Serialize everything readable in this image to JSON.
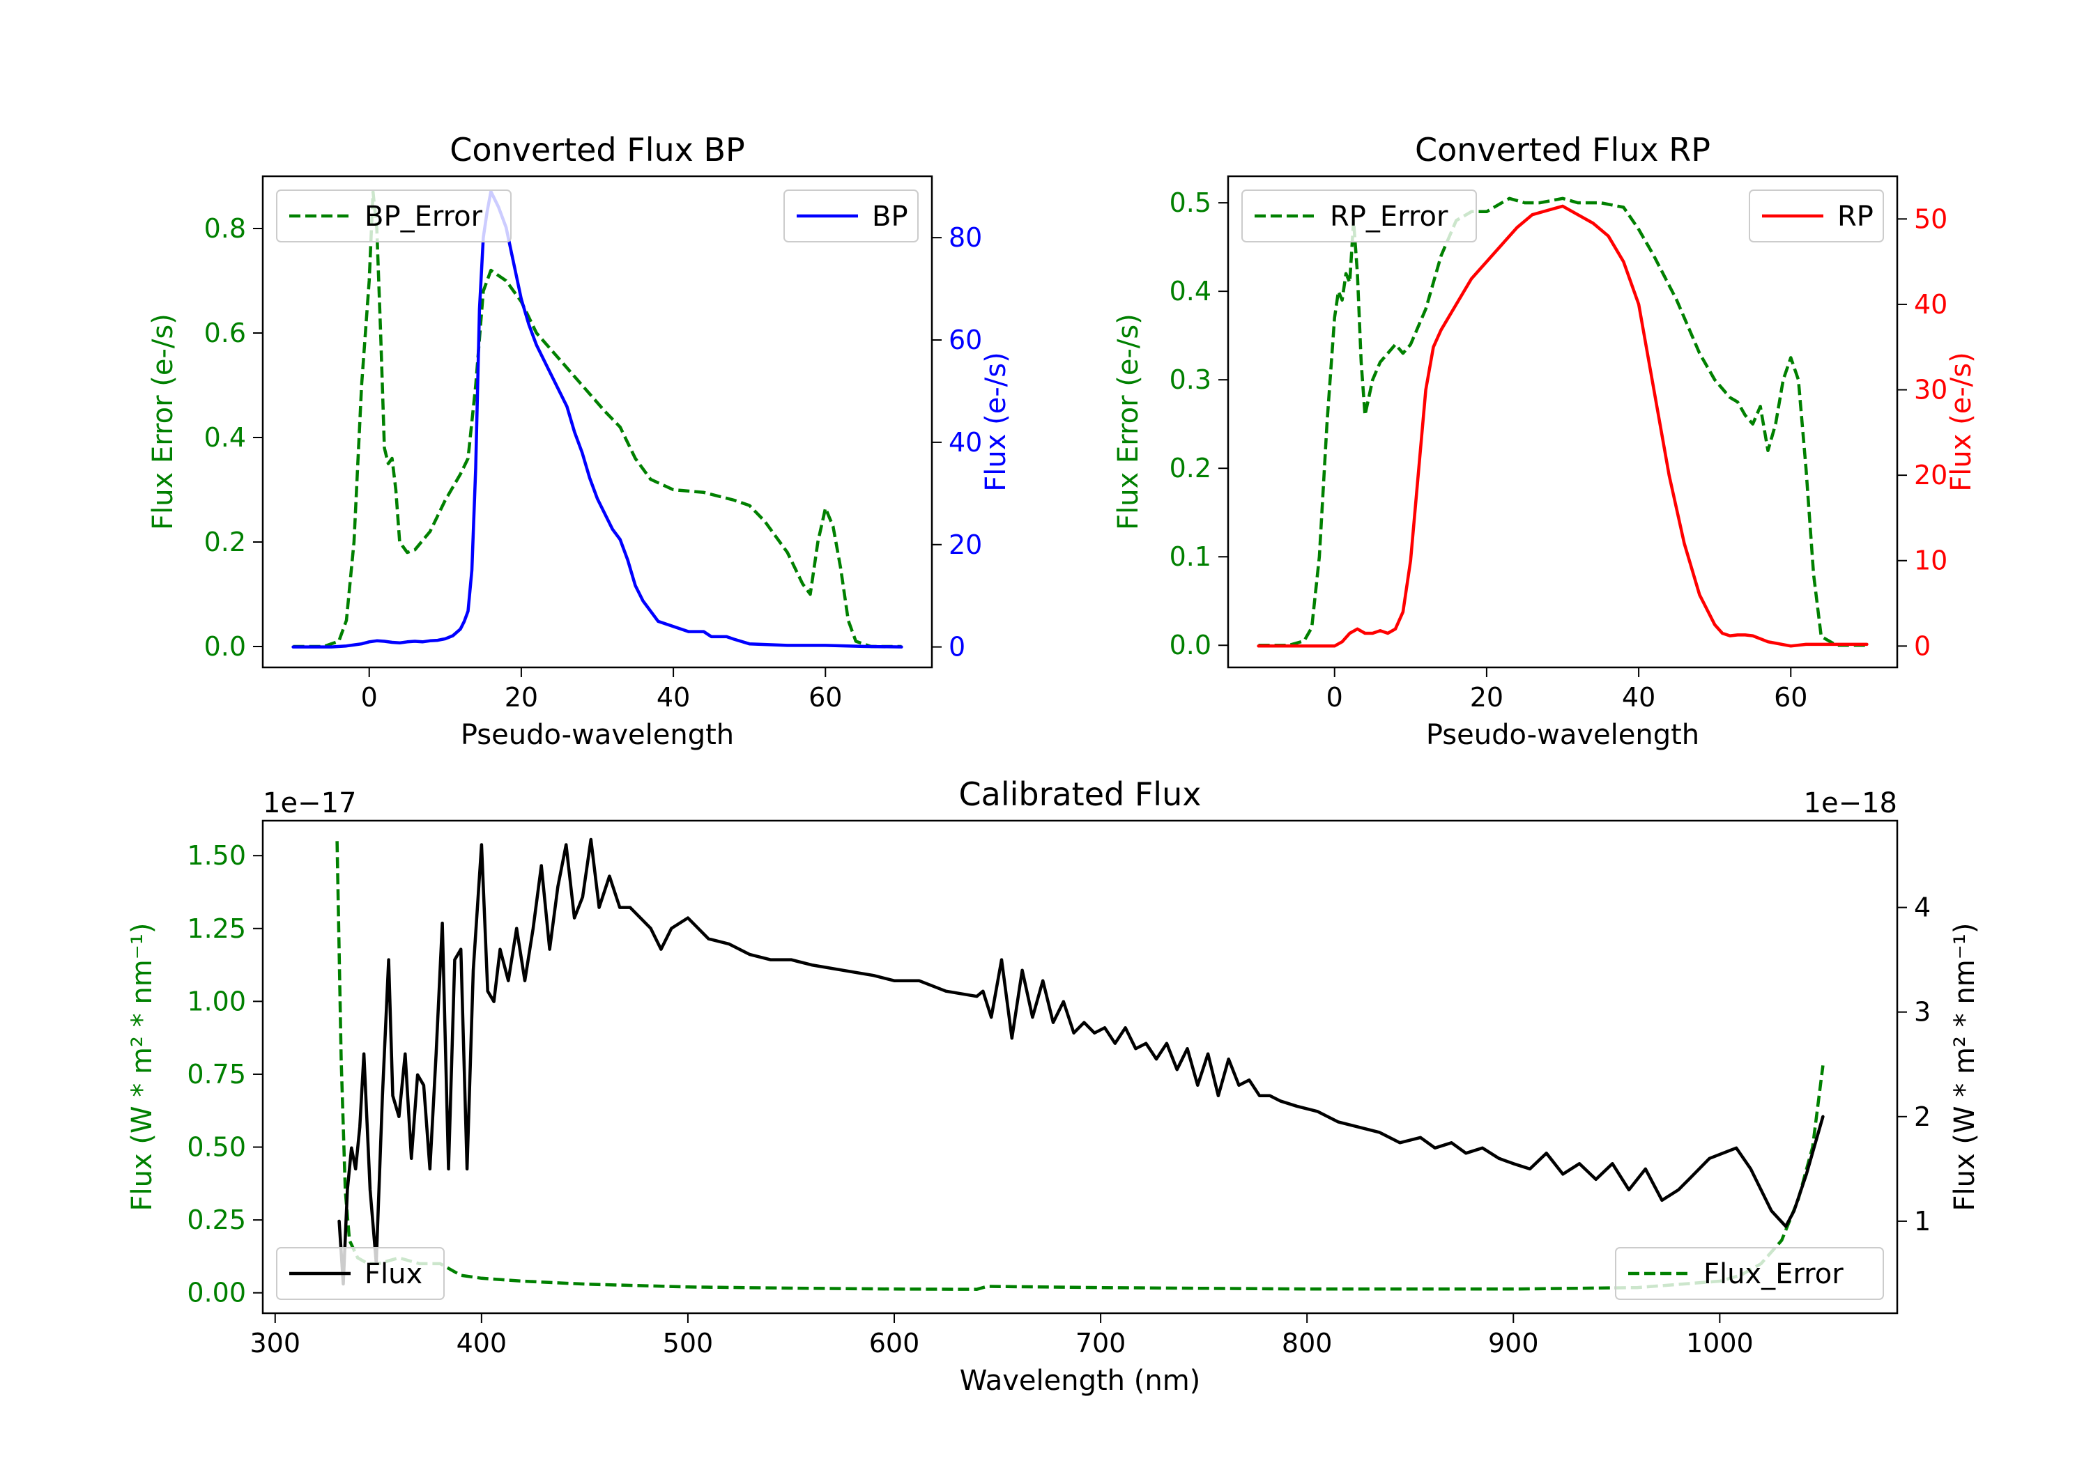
{
  "colors": {
    "green": "#008000",
    "blue": "#0000ff",
    "red": "#ff0000",
    "black": "#000000"
  },
  "chart_data": [
    {
      "id": "bp",
      "type": "line",
      "title": "Converted Flux BP",
      "xlabel": "Pseudo-wavelength",
      "ylabel_left": "Flux Error (e-/s)",
      "ylabel_right": "Flux (e-/s)",
      "xlim": [
        -14,
        74
      ],
      "ylim_left": [
        -0.04,
        0.9
      ],
      "ylim_right": [
        -4,
        92
      ],
      "xticks": [
        0,
        20,
        40,
        60
      ],
      "yticks_left": [
        0.0,
        0.2,
        0.4,
        0.6,
        0.8
      ],
      "yticks_left_labels": [
        "0.0",
        "0.2",
        "0.4",
        "0.6",
        "0.8"
      ],
      "yticks_right": [
        0,
        20,
        40,
        60,
        80
      ],
      "yticks_right_labels": [
        "0",
        "20",
        "40",
        "60",
        "80"
      ],
      "legend_left": {
        "label": "BP_Error",
        "placement": "upper-left"
      },
      "legend_right": {
        "label": "BP",
        "placement": "upper-right"
      },
      "series": [
        {
          "name": "BP_Error",
          "axis": "left",
          "color": "green",
          "dash": true,
          "x": [
            -10,
            -6,
            -4,
            -3,
            -2,
            -1,
            0,
            0.5,
            1,
            1.5,
            2,
            2.5,
            3,
            3.5,
            4,
            5,
            6,
            8,
            10,
            12,
            13,
            14,
            15,
            16,
            18,
            20,
            22,
            25,
            28,
            31,
            33,
            35,
            37,
            40,
            44,
            48,
            50,
            52,
            55,
            57,
            58,
            59,
            60,
            61,
            62,
            63,
            64,
            66,
            70
          ],
          "y": [
            0.0,
            0.0,
            0.01,
            0.05,
            0.2,
            0.5,
            0.7,
            0.87,
            0.8,
            0.6,
            0.38,
            0.35,
            0.36,
            0.3,
            0.2,
            0.18,
            0.185,
            0.22,
            0.28,
            0.33,
            0.36,
            0.5,
            0.68,
            0.72,
            0.7,
            0.66,
            0.6,
            0.55,
            0.5,
            0.45,
            0.42,
            0.36,
            0.32,
            0.3,
            0.295,
            0.28,
            0.27,
            0.24,
            0.18,
            0.12,
            0.1,
            0.2,
            0.265,
            0.23,
            0.15,
            0.05,
            0.01,
            0.0,
            0.0
          ]
        },
        {
          "name": "BP",
          "axis": "right",
          "color": "blue",
          "dash": false,
          "x": [
            -10,
            -5,
            -3,
            -1,
            0,
            1,
            2,
            3,
            4,
            5,
            6,
            7,
            8,
            9,
            10,
            11,
            12,
            12.5,
            13,
            13.5,
            14,
            14.5,
            15,
            15.5,
            16,
            17,
            18,
            19,
            20,
            21,
            22,
            24,
            26,
            27,
            28,
            29,
            30,
            31,
            32,
            33,
            34,
            35,
            36,
            37,
            38,
            40,
            42,
            44,
            45,
            46,
            47,
            48,
            50,
            55,
            60,
            65,
            70
          ],
          "y": [
            0,
            0,
            0.2,
            0.6,
            1,
            1.2,
            1.1,
            0.9,
            0.8,
            1,
            1.1,
            1,
            1.2,
            1.3,
            1.6,
            2.2,
            3.5,
            5,
            7,
            15,
            35,
            66,
            80,
            85,
            89,
            86,
            82,
            75,
            68,
            63,
            59,
            53,
            47,
            42,
            38,
            33,
            29,
            26,
            23,
            21,
            17,
            12,
            9,
            7,
            5,
            4,
            3,
            3,
            2,
            2,
            2,
            1.5,
            0.6,
            0.3,
            0.3,
            0.1,
            0
          ]
        }
      ]
    },
    {
      "id": "rp",
      "type": "line",
      "title": "Converted Flux RP",
      "xlabel": "Pseudo-wavelength",
      "ylabel_left": "Flux Error (e-/s)",
      "ylabel_right": "Flux (e-/s)",
      "xlim": [
        -14,
        74
      ],
      "ylim_left": [
        -0.025,
        0.53
      ],
      "ylim_right": [
        -2.5,
        55
      ],
      "xticks": [
        0,
        20,
        40,
        60
      ],
      "yticks_left": [
        0.0,
        0.1,
        0.2,
        0.3,
        0.4,
        0.5
      ],
      "yticks_left_labels": [
        "0.0",
        "0.1",
        "0.2",
        "0.3",
        "0.4",
        "0.5"
      ],
      "yticks_right": [
        0,
        10,
        20,
        30,
        40,
        50
      ],
      "yticks_right_labels": [
        "0",
        "10",
        "20",
        "30",
        "40",
        "50"
      ],
      "legend_left": {
        "label": "RP_Error",
        "placement": "upper-left"
      },
      "legend_right": {
        "label": "RP",
        "placement": "upper-right"
      },
      "series": [
        {
          "name": "RP_Error",
          "axis": "left",
          "color": "green",
          "dash": true,
          "x": [
            -10,
            -6,
            -4,
            -3,
            -2,
            -1,
            0,
            0.5,
            1,
            1.5,
            2,
            2.5,
            3,
            3.5,
            4,
            5,
            6,
            7,
            8,
            9,
            10,
            11,
            12,
            14,
            16,
            18,
            20,
            22,
            23,
            25,
            27,
            30,
            32,
            35,
            38,
            40,
            42,
            45,
            48,
            50,
            52,
            53,
            54,
            55,
            56,
            57,
            58,
            59,
            60,
            61,
            62,
            63,
            64,
            66,
            70
          ],
          "y": [
            0.0,
            0.0,
            0.005,
            0.02,
            0.1,
            0.25,
            0.37,
            0.4,
            0.39,
            0.42,
            0.41,
            0.48,
            0.42,
            0.32,
            0.26,
            0.3,
            0.32,
            0.33,
            0.34,
            0.33,
            0.34,
            0.36,
            0.38,
            0.44,
            0.48,
            0.49,
            0.49,
            0.5,
            0.505,
            0.5,
            0.5,
            0.505,
            0.5,
            0.5,
            0.495,
            0.47,
            0.44,
            0.39,
            0.33,
            0.3,
            0.28,
            0.275,
            0.26,
            0.25,
            0.27,
            0.22,
            0.25,
            0.3,
            0.325,
            0.3,
            0.2,
            0.08,
            0.01,
            0.0,
            0.0
          ]
        },
        {
          "name": "RP",
          "axis": "right",
          "color": "red",
          "dash": false,
          "x": [
            -10,
            -5,
            -3,
            -1,
            0,
            1,
            2,
            3,
            4,
            5,
            6,
            7,
            8,
            9,
            10,
            11,
            12,
            13,
            14,
            16,
            18,
            20,
            22,
            24,
            26,
            28,
            30,
            32,
            34,
            36,
            38,
            40,
            42,
            44,
            46,
            48,
            50,
            51,
            52,
            53,
            54,
            55,
            57,
            60,
            62,
            65,
            70
          ],
          "y": [
            0,
            0,
            0,
            0,
            0,
            0.5,
            1.5,
            2,
            1.5,
            1.5,
            1.8,
            1.5,
            2,
            4,
            10,
            20,
            30,
            35,
            37,
            40,
            43,
            45,
            47,
            49,
            50.5,
            51,
            51.5,
            50.5,
            49.5,
            48,
            45,
            40,
            30,
            20,
            12,
            6,
            2.5,
            1.5,
            1.2,
            1.3,
            1.3,
            1.2,
            0.5,
            0,
            0.2,
            0.2,
            0.2
          ]
        }
      ]
    },
    {
      "id": "cal",
      "type": "line",
      "title": "Calibrated Flux",
      "xlabel": "Wavelength (nm)",
      "ylabel_left": "Flux (W * m² * nm⁻¹)",
      "ylabel_right": "Flux (W * m² * nm⁻¹)",
      "multiplier_left": "1e−17",
      "multiplier_right": "1e−18",
      "xlim": [
        294,
        1086
      ],
      "ylim_left": [
        -0.07,
        1.62
      ],
      "ylim_right": [
        0.12,
        4.83
      ],
      "xticks": [
        300,
        400,
        500,
        600,
        700,
        800,
        900,
        1000
      ],
      "yticks_left": [
        0.0,
        0.25,
        0.5,
        0.75,
        1.0,
        1.25,
        1.5
      ],
      "yticks_left_labels": [
        "0.00",
        "0.25",
        "0.50",
        "0.75",
        "1.00",
        "1.25",
        "1.50"
      ],
      "yticks_right": [
        1,
        2,
        3,
        4
      ],
      "yticks_right_labels": [
        "1",
        "2",
        "3",
        "4"
      ],
      "legend_left": {
        "label": "Flux",
        "placement": "lower-left"
      },
      "legend_right": {
        "label": "Flux_Error",
        "placement": "lower-right"
      },
      "series": [
        {
          "name": "Flux_Error",
          "axis": "left",
          "color": "green",
          "dash": true,
          "x": [
            330,
            332,
            334,
            336,
            340,
            345,
            350,
            355,
            360,
            370,
            380,
            390,
            400,
            420,
            450,
            500,
            550,
            600,
            640,
            645,
            700,
            800,
            900,
            960,
            1000,
            1010,
            1020,
            1030,
            1038,
            1045,
            1050
          ],
          "y": [
            1.55,
            0.8,
            0.35,
            0.18,
            0.12,
            0.1,
            0.1,
            0.11,
            0.12,
            0.1,
            0.1,
            0.06,
            0.05,
            0.04,
            0.03,
            0.02,
            0.016,
            0.013,
            0.012,
            0.022,
            0.018,
            0.013,
            0.013,
            0.018,
            0.04,
            0.06,
            0.1,
            0.18,
            0.32,
            0.5,
            0.78
          ]
        },
        {
          "name": "Flux",
          "axis": "right",
          "color": "black",
          "dash": false,
          "x": [
            331,
            333,
            335,
            337,
            339,
            341,
            343,
            346,
            349,
            352,
            355,
            357,
            360,
            363,
            366,
            369,
            372,
            375,
            378,
            381,
            384,
            387,
            390,
            393,
            396,
            400,
            403,
            406,
            409,
            413,
            417,
            421,
            425,
            429,
            433,
            437,
            441,
            445,
            449,
            453,
            457,
            462,
            467,
            472,
            477,
            482,
            487,
            492,
            500,
            510,
            520,
            530,
            540,
            550,
            560,
            575,
            590,
            600,
            612,
            625,
            640,
            643,
            647,
            652,
            657,
            662,
            667,
            672,
            677,
            682,
            687,
            692,
            697,
            702,
            707,
            712,
            717,
            722,
            727,
            732,
            737,
            742,
            747,
            752,
            757,
            762,
            767,
            772,
            777,
            782,
            787,
            795,
            805,
            815,
            825,
            835,
            845,
            855,
            862,
            870,
            877,
            885,
            893,
            900,
            908,
            916,
            924,
            932,
            940,
            948,
            956,
            964,
            972,
            980,
            985,
            995,
            1008,
            1015,
            1025,
            1032,
            1036,
            1042,
            1050
          ],
          "y": [
            1.0,
            0.4,
            1.3,
            1.7,
            1.5,
            1.9,
            2.6,
            1.3,
            0.6,
            2.2,
            3.5,
            2.2,
            2.0,
            2.6,
            1.6,
            2.4,
            2.3,
            1.5,
            2.6,
            3.85,
            1.5,
            3.5,
            3.6,
            1.5,
            3.4,
            4.6,
            3.2,
            3.1,
            3.6,
            3.3,
            3.8,
            3.3,
            3.8,
            4.4,
            3.6,
            4.2,
            4.6,
            3.9,
            4.1,
            4.65,
            4.0,
            4.3,
            4.0,
            4.0,
            3.9,
            3.8,
            3.6,
            3.8,
            3.9,
            3.7,
            3.65,
            3.55,
            3.5,
            3.5,
            3.45,
            3.4,
            3.35,
            3.3,
            3.3,
            3.2,
            3.15,
            3.2,
            2.95,
            3.5,
            2.75,
            3.4,
            2.95,
            3.3,
            2.9,
            3.1,
            2.8,
            2.9,
            2.8,
            2.85,
            2.7,
            2.85,
            2.65,
            2.7,
            2.55,
            2.7,
            2.45,
            2.65,
            2.3,
            2.6,
            2.2,
            2.55,
            2.3,
            2.35,
            2.2,
            2.2,
            2.15,
            2.1,
            2.05,
            1.95,
            1.9,
            1.85,
            1.75,
            1.8,
            1.7,
            1.75,
            1.65,
            1.7,
            1.6,
            1.55,
            1.5,
            1.65,
            1.45,
            1.55,
            1.4,
            1.55,
            1.3,
            1.5,
            1.2,
            1.3,
            1.4,
            1.6,
            1.7,
            1.5,
            1.1,
            0.95,
            1.1,
            1.45,
            2.0
          ]
        }
      ]
    }
  ]
}
